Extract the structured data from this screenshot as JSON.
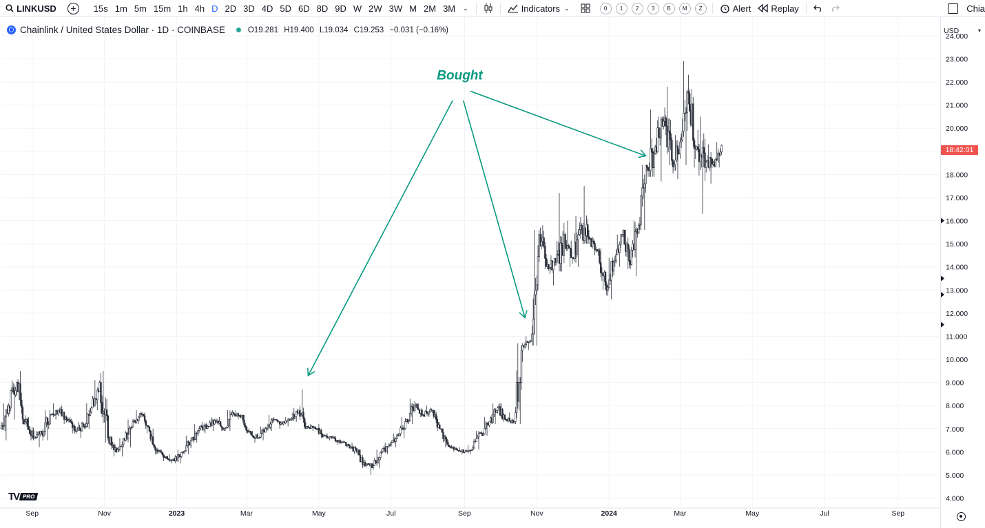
{
  "toolbar": {
    "symbol": "LINKUSD",
    "intervals": [
      "15s",
      "1m",
      "5m",
      "15m",
      "1h",
      "4h",
      "D",
      "2D",
      "3D",
      "4D",
      "5D",
      "6D",
      "8D",
      "9D",
      "W",
      "2W",
      "3W",
      "M",
      "2M",
      "3M"
    ],
    "active_interval": "D",
    "indicators_label": "Indicators",
    "alert_label": "Alert",
    "replay_label": "Replay",
    "layout_circles": [
      "0",
      "1",
      "2",
      "3",
      "B",
      "M",
      "Z"
    ],
    "layout_name": "Chia"
  },
  "legend": {
    "title": "Chainlink / United States Dollar · 1D · COINBASE",
    "open": "O19.281",
    "high": "H19.400",
    "low": "L19.034",
    "close": "C19.253",
    "change": "−0.031 (−0.16%)"
  },
  "price_scale": {
    "currency": "USD",
    "live_price_label": "18:42:01",
    "live_price_color": "#ef5350"
  },
  "watermark": {
    "logo": "TV",
    "badge": "PRO"
  },
  "chart_data": {
    "type": "line",
    "subtype": "candlestick",
    "title": "Chainlink / United States Dollar · 1D · COINBASE",
    "yticks": [
      "4.000",
      "5.000",
      "6.000",
      "7.000",
      "8.000",
      "9.000",
      "10.000",
      "11.000",
      "12.000",
      "13.000",
      "14.000",
      "15.000",
      "16.000",
      "17.000",
      "18.000",
      "19.000",
      "20.000",
      "21.000",
      "22.000",
      "23.000",
      "24.000"
    ],
    "ylim": [
      3.6,
      24.8
    ],
    "x_ticks": [
      {
        "label": "Sep",
        "date": "2022-09-01"
      },
      {
        "label": "Nov",
        "date": "2022-11-01"
      },
      {
        "label": "2023",
        "date": "2023-01-01",
        "bold": true
      },
      {
        "label": "Mar",
        "date": "2023-03-01"
      },
      {
        "label": "May",
        "date": "2023-05-01"
      },
      {
        "label": "Jul",
        "date": "2023-07-01"
      },
      {
        "label": "Sep",
        "date": "2023-09-01"
      },
      {
        "label": "Nov",
        "date": "2023-11-01"
      },
      {
        "label": "2024",
        "date": "2024-01-01",
        "bold": true
      },
      {
        "label": "Mar",
        "date": "2024-03-01"
      },
      {
        "label": "May",
        "date": "2024-05-01"
      },
      {
        "label": "Jul",
        "date": "2024-07-01"
      },
      {
        "label": "Sep",
        "date": "2024-09-01"
      }
    ],
    "xlim": [
      "2022-08-06",
      "2024-10-06"
    ],
    "up_color": "#26a69a",
    "down_color": "#ef5350",
    "candle_color": "#2a2e39",
    "series": [
      {
        "name": "",
        "x": [
          "2022-08-06",
          "2022-08-13",
          "2022-08-20",
          "2022-08-27",
          "2022-09-03",
          "2022-09-10",
          "2022-09-17",
          "2022-09-24",
          "2022-10-01",
          "2022-10-08",
          "2022-10-15",
          "2022-10-22",
          "2022-10-29",
          "2022-11-05",
          "2022-11-12",
          "2022-11-19",
          "2022-11-26",
          "2022-12-03",
          "2022-12-10",
          "2022-12-17",
          "2022-12-24",
          "2022-12-31",
          "2023-01-07",
          "2023-01-14",
          "2023-01-21",
          "2023-01-28",
          "2023-02-04",
          "2023-02-11",
          "2023-02-18",
          "2023-02-25",
          "2023-03-04",
          "2023-03-11",
          "2023-03-18",
          "2023-03-25",
          "2023-04-01",
          "2023-04-08",
          "2023-04-15",
          "2023-04-22",
          "2023-04-29",
          "2023-05-06",
          "2023-05-13",
          "2023-05-20",
          "2023-05-27",
          "2023-06-03",
          "2023-06-10",
          "2023-06-17",
          "2023-06-24",
          "2023-07-01",
          "2023-07-08",
          "2023-07-15",
          "2023-07-22",
          "2023-07-29",
          "2023-08-05",
          "2023-08-12",
          "2023-08-19",
          "2023-08-26",
          "2023-09-02",
          "2023-09-09",
          "2023-09-16",
          "2023-09-23",
          "2023-09-30",
          "2023-10-07",
          "2023-10-14",
          "2023-10-21",
          "2023-10-28",
          "2023-11-04",
          "2023-11-11",
          "2023-11-18",
          "2023-11-25",
          "2023-12-02",
          "2023-12-09",
          "2023-12-16",
          "2023-12-23",
          "2023-12-30",
          "2024-01-06",
          "2024-01-13",
          "2024-01-20",
          "2024-01-27",
          "2024-02-03",
          "2024-02-10",
          "2024-02-17",
          "2024-02-24",
          "2024-03-02",
          "2024-03-09",
          "2024-03-16",
          "2024-03-23",
          "2024-03-30"
        ],
        "open": [
          7.0,
          8.0,
          9.0,
          7.3,
          6.6,
          6.8,
          7.6,
          7.8,
          7.4,
          6.9,
          7.1,
          7.9,
          9.0,
          6.6,
          6.0,
          6.5,
          7.3,
          7.6,
          6.9,
          6.0,
          5.8,
          5.6,
          6.0,
          6.5,
          7.0,
          7.1,
          7.3,
          7.0,
          7.7,
          7.5,
          6.9,
          6.6,
          7.0,
          7.4,
          7.2,
          7.4,
          7.8,
          7.1,
          7.0,
          6.7,
          6.6,
          6.4,
          6.3,
          6.0,
          5.4,
          5.4,
          6.0,
          6.3,
          6.7,
          7.4,
          8.0,
          7.6,
          7.8,
          7.0,
          6.3,
          6.1,
          6.0,
          6.2,
          6.8,
          7.3,
          7.9,
          7.4,
          7.3,
          10.6,
          10.8,
          15.4,
          14.1,
          14.2,
          15.4,
          14.4,
          15.8,
          15.2,
          14.7,
          13.2,
          14.2,
          15.4,
          14.1,
          15.8,
          18.3,
          19.2,
          20.3,
          18.6,
          19.4,
          21.5,
          19.2,
          18.3,
          18.5
        ],
        "high": [
          8.1,
          9.1,
          9.5,
          7.5,
          6.9,
          7.8,
          8.1,
          8.0,
          7.5,
          7.3,
          8.1,
          9.1,
          9.5,
          6.7,
          6.6,
          7.4,
          7.8,
          7.7,
          7.0,
          6.1,
          5.9,
          6.1,
          6.7,
          7.2,
          7.3,
          7.5,
          7.5,
          7.8,
          7.8,
          7.6,
          6.9,
          7.1,
          7.6,
          7.4,
          7.5,
          7.9,
          8.7,
          7.2,
          7.2,
          6.8,
          6.7,
          6.5,
          6.4,
          6.1,
          5.5,
          6.1,
          6.4,
          6.8,
          7.5,
          8.3,
          8.1,
          8.0,
          7.8,
          7.0,
          6.3,
          6.2,
          6.3,
          6.9,
          7.5,
          8.1,
          8.1,
          7.7,
          10.7,
          11.0,
          15.6,
          15.8,
          14.5,
          17.2,
          16.0,
          16.2,
          17.5,
          15.3,
          14.8,
          14.4,
          15.4,
          15.6,
          16.0,
          18.4,
          20.8,
          20.5,
          21.8,
          19.7,
          22.9,
          21.7,
          20.5,
          19.3,
          19.4
        ],
        "low": [
          6.5,
          7.4,
          7.2,
          6.5,
          6.2,
          6.5,
          7.4,
          7.2,
          6.8,
          6.6,
          7.0,
          7.8,
          6.4,
          5.8,
          5.8,
          6.2,
          7.2,
          6.8,
          5.9,
          5.6,
          5.5,
          5.5,
          5.9,
          6.4,
          6.8,
          6.9,
          6.9,
          6.9,
          7.4,
          6.8,
          6.4,
          6.5,
          6.9,
          7.0,
          7.1,
          7.3,
          7.0,
          6.9,
          6.6,
          6.5,
          6.3,
          6.2,
          5.9,
          5.3,
          5.0,
          5.3,
          5.9,
          6.2,
          6.6,
          7.2,
          7.5,
          7.5,
          6.9,
          6.2,
          6.0,
          5.9,
          5.9,
          6.1,
          6.7,
          7.2,
          7.3,
          7.2,
          7.2,
          10.4,
          10.6,
          13.9,
          13.2,
          13.8,
          14.0,
          14.0,
          15.0,
          14.5,
          13.0,
          12.6,
          14.0,
          13.9,
          13.6,
          15.6,
          17.9,
          17.7,
          18.4,
          17.8,
          18.4,
          18.3,
          16.3,
          17.6,
          18.3
        ],
        "close": [
          8.0,
          9.0,
          7.3,
          6.6,
          6.8,
          7.6,
          7.8,
          7.4,
          6.9,
          7.1,
          7.9,
          9.0,
          6.6,
          6.0,
          6.5,
          7.3,
          7.6,
          6.9,
          6.0,
          5.8,
          5.6,
          6.0,
          6.5,
          7.0,
          7.1,
          7.3,
          7.0,
          7.7,
          7.5,
          6.9,
          6.6,
          7.0,
          7.4,
          7.2,
          7.4,
          7.8,
          7.1,
          7.0,
          6.7,
          6.6,
          6.4,
          6.3,
          6.0,
          5.4,
          5.4,
          6.0,
          6.3,
          6.7,
          7.4,
          8.0,
          7.6,
          7.8,
          7.0,
          6.3,
          6.1,
          6.0,
          6.2,
          6.8,
          7.3,
          7.9,
          7.4,
          7.3,
          10.6,
          10.8,
          15.4,
          14.1,
          14.2,
          15.4,
          14.4,
          15.8,
          15.2,
          14.7,
          13.2,
          14.2,
          15.4,
          14.1,
          15.8,
          18.3,
          19.2,
          20.3,
          18.6,
          19.4,
          21.5,
          19.2,
          18.3,
          18.5,
          19.25
        ]
      }
    ],
    "annotations": [
      {
        "type": "text",
        "text": "Bought",
        "x": "2023-08-28",
        "y": 22.1,
        "color": "#089981"
      },
      {
        "type": "arrow",
        "from": {
          "x": "2023-08-22",
          "y": 21.2
        },
        "to": {
          "x": "2023-04-22",
          "y": 9.3
        },
        "color": "#089981"
      },
      {
        "type": "arrow",
        "from": {
          "x": "2023-08-31",
          "y": 21.2
        },
        "to": {
          "x": "2023-10-22",
          "y": 11.8
        },
        "color": "#089981"
      },
      {
        "type": "arrow",
        "from": {
          "x": "2023-09-06",
          "y": 21.6
        },
        "to": {
          "x": "2024-02-01",
          "y": 18.8
        },
        "color": "#089981"
      }
    ],
    "scale_markers_y": [
      16.0,
      13.5,
      12.8,
      11.5
    ],
    "legend": "top-left",
    "grid": true
  }
}
